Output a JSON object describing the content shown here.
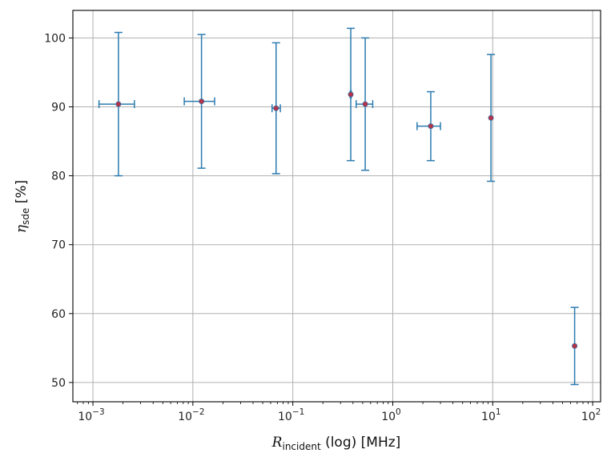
{
  "chart_data": {
    "type": "scatter",
    "xscale": "log",
    "xlim": [
      0.00063,
      120
    ],
    "ylim": [
      47.2,
      104
    ],
    "grid": true,
    "xlabel": {
      "symbol": "R",
      "subscript": "incident",
      "suffix": " (log) [MHz]"
    },
    "ylabel": {
      "symbol": "η",
      "subscript": "sde",
      "suffix": " [%]"
    },
    "xticks": [
      {
        "value": 0.001,
        "base": "10",
        "exp": "−3"
      },
      {
        "value": 0.01,
        "base": "10",
        "exp": "−2"
      },
      {
        "value": 0.1,
        "base": "10",
        "exp": "−1"
      },
      {
        "value": 1,
        "base": "10",
        "exp": "0"
      },
      {
        "value": 10,
        "base": "10",
        "exp": "1"
      },
      {
        "value": 100,
        "base": "10",
        "exp": "2"
      }
    ],
    "yticks": [
      50,
      60,
      70,
      80,
      90,
      100
    ],
    "points": [
      {
        "x": 0.0018,
        "y": 90.4,
        "y_err": 10.4,
        "x_lo": 0.00115,
        "x_hi": 0.0026
      },
      {
        "x": 0.0122,
        "y": 90.8,
        "y_err": 9.7,
        "x_lo": 0.0082,
        "x_hi": 0.0165
      },
      {
        "x": 0.068,
        "y": 89.8,
        "y_err": 9.5,
        "x_lo": 0.062,
        "x_hi": 0.075
      },
      {
        "x": 0.38,
        "y": 91.8,
        "y_err": 9.6,
        "x_lo": 0.375,
        "x_hi": 0.385
      },
      {
        "x": 0.53,
        "y": 90.4,
        "y_err": 9.6,
        "x_lo": 0.43,
        "x_hi": 0.63
      },
      {
        "x": 2.4,
        "y": 87.2,
        "y_err": 5.0,
        "x_lo": 1.75,
        "x_hi": 3.0
      },
      {
        "x": 9.6,
        "y": 88.4,
        "y_err": 9.2,
        "x_lo": 9.6,
        "x_hi": 9.6
      },
      {
        "x": 66,
        "y": 55.3,
        "y_err": 5.6,
        "x_lo": 66,
        "x_hi": 66
      }
    ],
    "colors": {
      "errorbar": "#2b7bb0",
      "marker": "#b2334a",
      "grid": "#b0b0b0",
      "axis": "#000000"
    }
  }
}
